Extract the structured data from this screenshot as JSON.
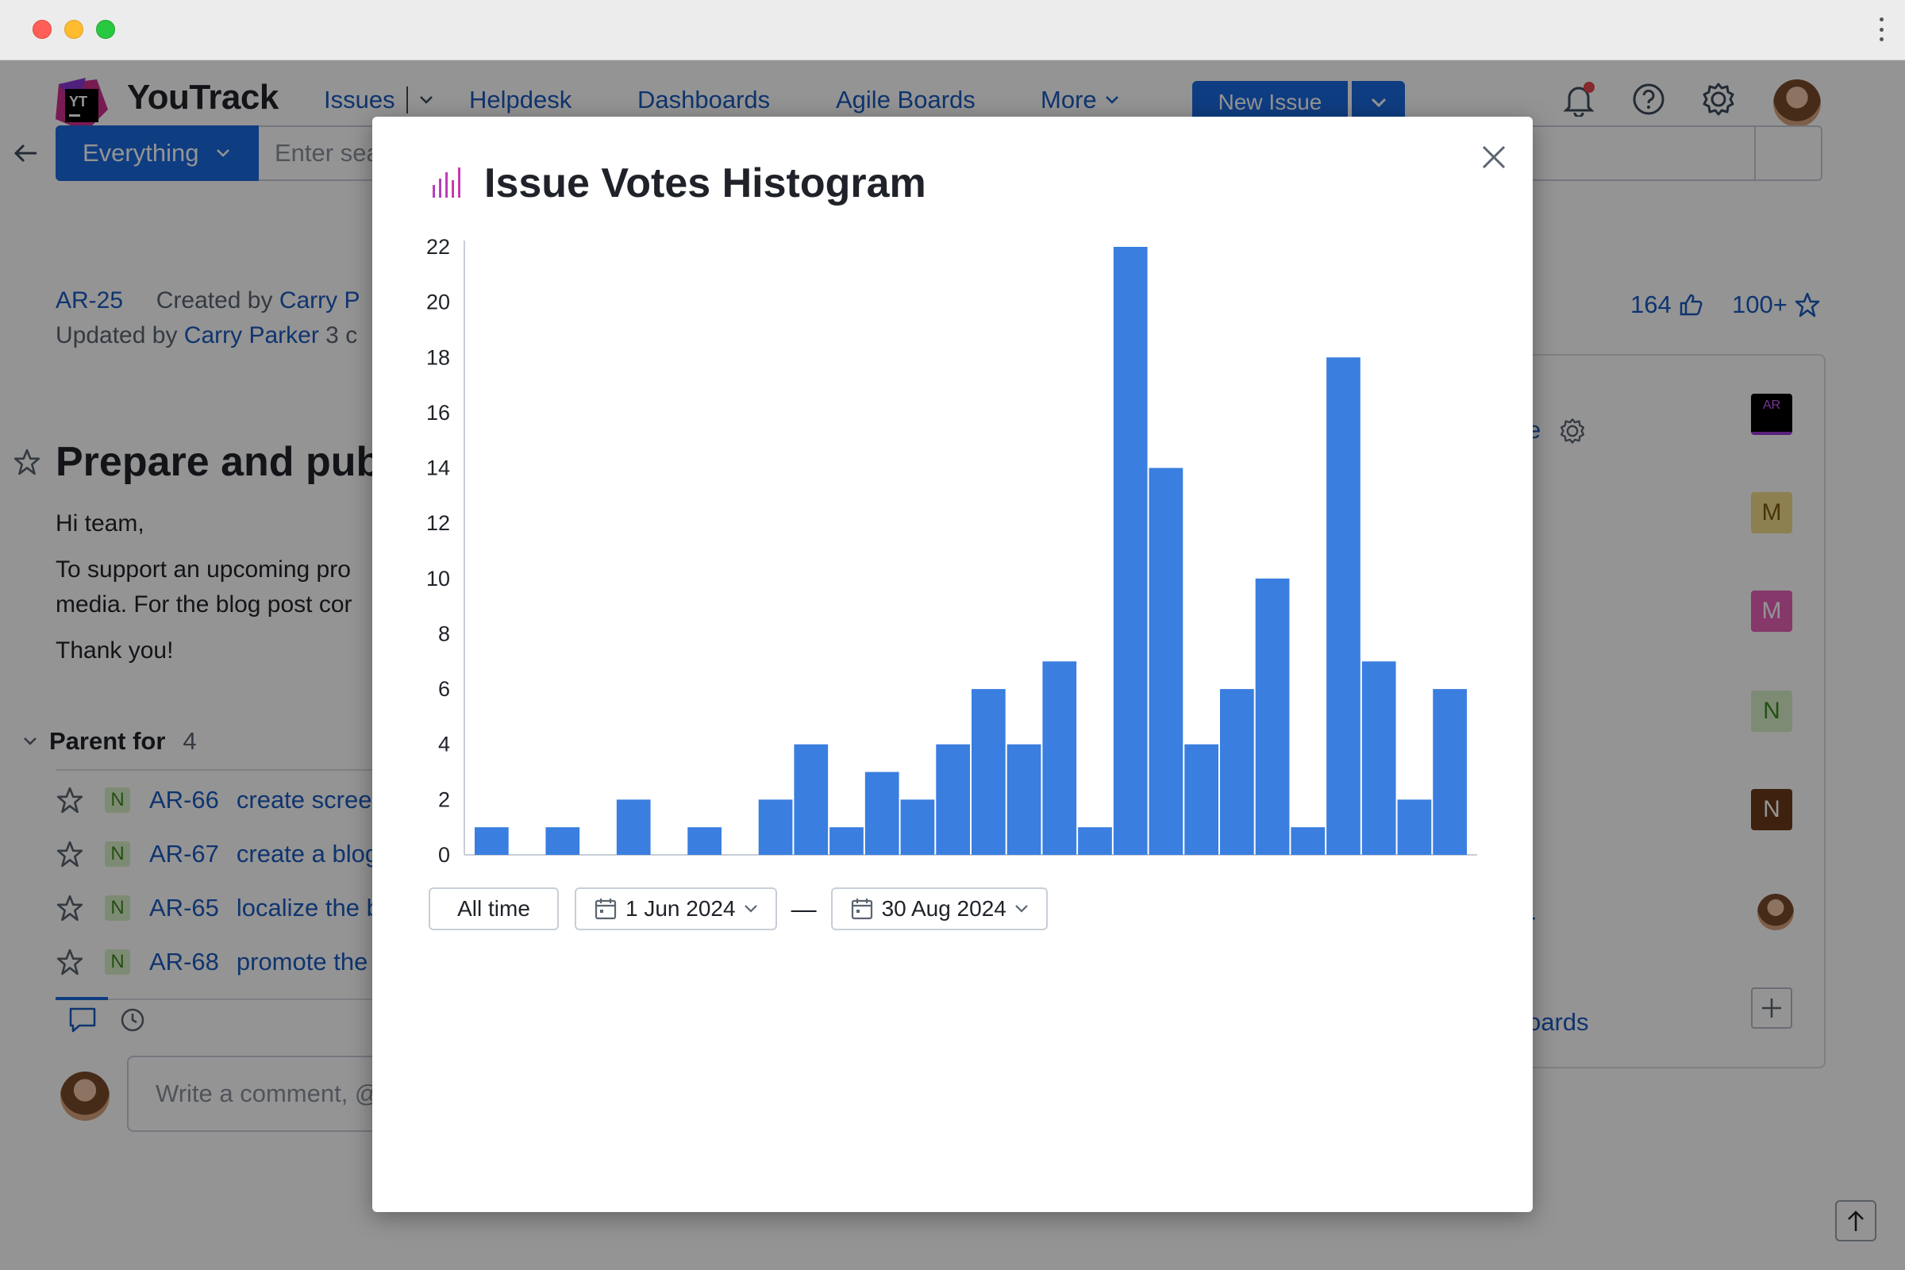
{
  "window": {
    "colors": {
      "close": "#ff5f57",
      "minimize": "#febc2e",
      "zoom": "#28c840"
    }
  },
  "app": {
    "brand": "YouTrack",
    "logo_mark": "YT",
    "nav": [
      "Issues",
      "Helpdesk",
      "Dashboards",
      "Agile Boards",
      "More"
    ],
    "new_issue_label": "New Issue",
    "icons": [
      "bell-icon",
      "help-icon",
      "gear-icon"
    ],
    "accent": "#1b6ae0"
  },
  "search": {
    "scope_label": "Everything",
    "placeholder": "Enter sea"
  },
  "issue": {
    "id": "AR-25",
    "created_prefix": "Created by",
    "created_by": "Carry P",
    "updated_prefix": "Updated by",
    "updated_by": "Carry Parker",
    "updated_suffix": "3 c",
    "votes": "164",
    "stars": "100+",
    "title": "Prepare and publ",
    "body": [
      "Hi team,",
      "To support an upcoming pro",
      "media. For the blog post cor",
      "Thank you!"
    ],
    "parent_for": {
      "label": "Parent for",
      "count": "4"
    },
    "subtasks": [
      {
        "state": "N",
        "id": "AR-66",
        "summary": "create screen"
      },
      {
        "state": "N",
        "id": "AR-67",
        "summary": "create a blog"
      },
      {
        "state": "N",
        "id": "AR-65",
        "summary": "localize the b"
      },
      {
        "state": "N",
        "id": "AR-68",
        "summary": "promote the"
      }
    ],
    "comment_placeholder": "Write a comment, @"
  },
  "side_panel": {
    "partial_text_top": "e",
    "partial_text_mid": "r",
    "partial_text_bottom": "oards",
    "avatars": [
      "AR",
      "M",
      "M",
      "N",
      "N"
    ]
  },
  "modal": {
    "title": "Issue Votes Histogram",
    "controls": {
      "all_time": "All time",
      "from_date": "1 Jun 2024",
      "to_date": "30 Aug 2024",
      "separator": "—"
    }
  },
  "chart_data": {
    "type": "bar",
    "title": "Issue Votes Histogram",
    "xlabel": "",
    "ylabel": "",
    "ylim": [
      0,
      22
    ],
    "yticks": [
      0,
      2,
      4,
      6,
      8,
      10,
      12,
      14,
      16,
      18,
      20,
      22
    ],
    "grid": false,
    "bar_color": "#3a7ee0",
    "values": [
      1,
      0,
      1,
      0,
      2,
      0,
      1,
      0,
      2,
      4,
      1,
      3,
      2,
      4,
      6,
      4,
      7,
      1,
      22,
      14,
      4,
      6,
      10,
      1,
      18,
      7,
      2,
      6
    ]
  }
}
